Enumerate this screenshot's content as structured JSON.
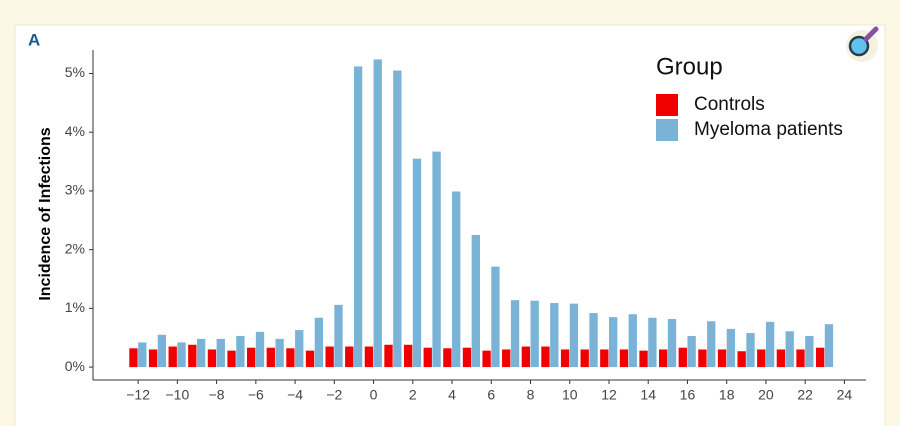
{
  "chart_data": {
    "type": "bar",
    "panel_label": "A",
    "ylabel": "Incidence of Infections",
    "legend_title": "Group",
    "legend": "top-right",
    "x": [
      -12,
      -11,
      -10,
      -9,
      -8,
      -7,
      -6,
      -5,
      -4,
      -3,
      -2,
      -1,
      0,
      1,
      2,
      3,
      4,
      5,
      6,
      7,
      8,
      9,
      10,
      11,
      12,
      13,
      14,
      15,
      16,
      17,
      18,
      19,
      20,
      21,
      22,
      23
    ],
    "series": [
      {
        "name": "Controls",
        "color": "#f00000",
        "values": [
          0.32,
          0.3,
          0.35,
          0.38,
          0.3,
          0.28,
          0.33,
          0.33,
          0.32,
          0.28,
          0.35,
          0.35,
          0.35,
          0.38,
          0.38,
          0.33,
          0.32,
          0.33,
          0.28,
          0.3,
          0.35,
          0.35,
          0.3,
          0.3,
          0.3,
          0.3,
          0.28,
          0.3,
          0.33,
          0.3,
          0.3,
          0.27,
          0.3,
          0.3,
          0.3,
          0.33
        ]
      },
      {
        "name": "Myeloma patients",
        "color": "#7ab3d6",
        "values": [
          0.42,
          0.55,
          0.42,
          0.48,
          0.48,
          0.53,
          0.6,
          0.48,
          0.63,
          0.84,
          1.06,
          5.12,
          5.24,
          5.05,
          3.55,
          3.67,
          2.99,
          2.25,
          1.71,
          1.14,
          1.13,
          1.09,
          1.08,
          0.92,
          0.85,
          0.9,
          0.84,
          0.82,
          0.53,
          0.78,
          0.65,
          0.58,
          0.77,
          0.61,
          0.53,
          0.73
        ]
      }
    ],
    "xlim": [
      -14.3,
      25.1
    ],
    "xticks": [
      {
        "value": -12,
        "label": "−12"
      },
      {
        "value": -10,
        "label": "−10"
      },
      {
        "value": -8,
        "label": "−8"
      },
      {
        "value": -6,
        "label": "−6"
      },
      {
        "value": -4,
        "label": "−4"
      },
      {
        "value": -2,
        "label": "−2"
      },
      0,
      2,
      4,
      6,
      8,
      10,
      12,
      14,
      16,
      18,
      20,
      22,
      24
    ],
    "ylim": [
      -0.22,
      5.4
    ],
    "yticks": [
      {
        "value": 0,
        "label": "0%"
      },
      {
        "value": 1,
        "label": "1%"
      },
      {
        "value": 2,
        "label": "2%"
      },
      {
        "value": 3,
        "label": "3%"
      },
      {
        "value": 4,
        "label": "4%"
      },
      {
        "value": 5,
        "label": "5%"
      }
    ],
    "grid": false
  }
}
